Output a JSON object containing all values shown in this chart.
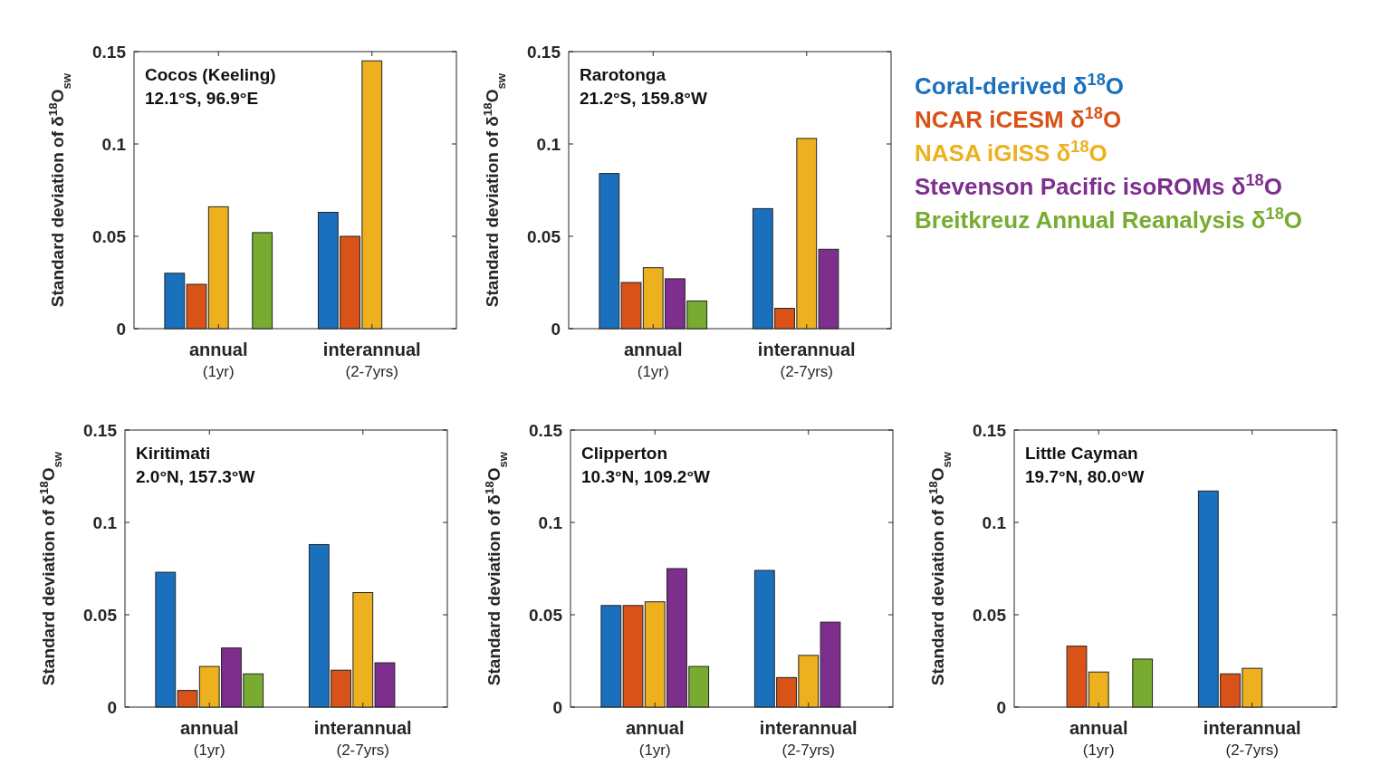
{
  "chart_data": [
    {
      "type": "bar",
      "title": "Cocos (Keeling)",
      "subtitle": "12.1°S, 96.9°E",
      "ylabel": "Standard deviation of δ$^{18}$O$_{sw}$",
      "categories": [
        "annual\n(1yr)",
        "interannual\n(2-7yrs)"
      ],
      "ylim": [
        0,
        0.15
      ],
      "yticks": [
        0,
        0.05,
        0.1,
        0.15
      ],
      "grid": false,
      "series": [
        {
          "color": "#1a70bd",
          "values": [
            0.03,
            0.063
          ]
        },
        {
          "color": "#d95319",
          "values": [
            0.024,
            0.05
          ]
        },
        {
          "color": "#edb120",
          "values": [
            0.066,
            0.145
          ]
        },
        {
          "values": [
            null,
            null
          ]
        },
        {
          "color": "#77ac30",
          "values": [
            0.052,
            null
          ]
        }
      ]
    },
    {
      "type": "bar",
      "title": "Rarotonga",
      "subtitle": "21.2°S, 159.8°W",
      "ylabel": "Standard deviation of δ$^{18}$O$_{sw}$",
      "categories": [
        "annual\n(1yr)",
        "interannual\n(2-7yrs)"
      ],
      "ylim": [
        0,
        0.15
      ],
      "yticks": [
        0,
        0.05,
        0.1,
        0.15
      ],
      "grid": false,
      "legend": "right",
      "series": [
        {
          "name": "Coral-derived δ$^{18}$O",
          "color": "#1a70bd",
          "values": [
            0.084,
            0.065
          ]
        },
        {
          "name": "NCAR iCESM δ$^{18}$O",
          "color": "#d95319",
          "values": [
            0.025,
            0.011
          ]
        },
        {
          "name": "NASA iGISS δ$^{18}$O",
          "color": "#edb120",
          "values": [
            0.033,
            0.103
          ]
        },
        {
          "name": "Stevenson Pacific isoROMs δ$^{18}$O",
          "color": "#7e2f8e",
          "values": [
            0.027,
            0.043
          ]
        },
        {
          "name": "Breitkreuz Annual Reanalysis δ$^{18}$O",
          "color": "#77ac30",
          "values": [
            0.015,
            null
          ]
        }
      ]
    },
    {
      "type": "bar",
      "title": "Kiritimati",
      "subtitle": "2.0°N, 157.3°W",
      "ylabel": "Standard deviation of δ$^{18}$O$_{sw}$",
      "categories": [
        "annual\n(1yr)",
        "interannual\n(2-7yrs)"
      ],
      "ylim": [
        0,
        0.15
      ],
      "yticks": [
        0,
        0.05,
        0.1,
        0.15
      ],
      "grid": false,
      "series": [
        {
          "color": "#1a70bd",
          "values": [
            0.073,
            0.088
          ]
        },
        {
          "color": "#d95319",
          "values": [
            0.009,
            0.02
          ]
        },
        {
          "color": "#edb120",
          "values": [
            0.022,
            0.062
          ]
        },
        {
          "color": "#7e2f8e",
          "values": [
            0.032,
            0.024
          ]
        },
        {
          "color": "#77ac30",
          "values": [
            0.018,
            null
          ]
        }
      ]
    },
    {
      "type": "bar",
      "title": "Clipperton",
      "subtitle": "10.3°N, 109.2°W",
      "ylabel": "Standard deviation of δ$^{18}$O$_{sw}$",
      "categories": [
        "annual\n(1yr)",
        "interannual\n(2-7yrs)"
      ],
      "ylim": [
        0,
        0.15
      ],
      "yticks": [
        0,
        0.05,
        0.1,
        0.15
      ],
      "grid": false,
      "series": [
        {
          "color": "#1a70bd",
          "values": [
            0.055,
            0.074
          ]
        },
        {
          "color": "#d95319",
          "values": [
            0.055,
            0.016
          ]
        },
        {
          "color": "#edb120",
          "values": [
            0.057,
            0.028
          ]
        },
        {
          "color": "#7e2f8e",
          "values": [
            0.075,
            0.046
          ]
        },
        {
          "color": "#77ac30",
          "values": [
            0.022,
            null
          ]
        }
      ]
    },
    {
      "type": "bar",
      "title": "Little Cayman",
      "subtitle": "19.7°N, 80.0°W",
      "ylabel": "Standard deviation of δ$^{18}$O$_{sw}$",
      "categories": [
        "annual\n(1yr)",
        "interannual\n(2-7yrs)"
      ],
      "ylim": [
        0,
        0.15
      ],
      "yticks": [
        0,
        0.05,
        0.1,
        0.15
      ],
      "grid": false,
      "series": [
        {
          "color": "#1a70bd",
          "values": [
            null,
            0.117
          ]
        },
        {
          "color": "#d95319",
          "values": [
            0.033,
            0.018
          ]
        },
        {
          "color": "#edb120",
          "values": [
            0.019,
            0.021
          ]
        },
        {
          "values": [
            null,
            null
          ]
        },
        {
          "color": "#77ac30",
          "values": [
            0.026,
            null
          ]
        }
      ]
    }
  ]
}
